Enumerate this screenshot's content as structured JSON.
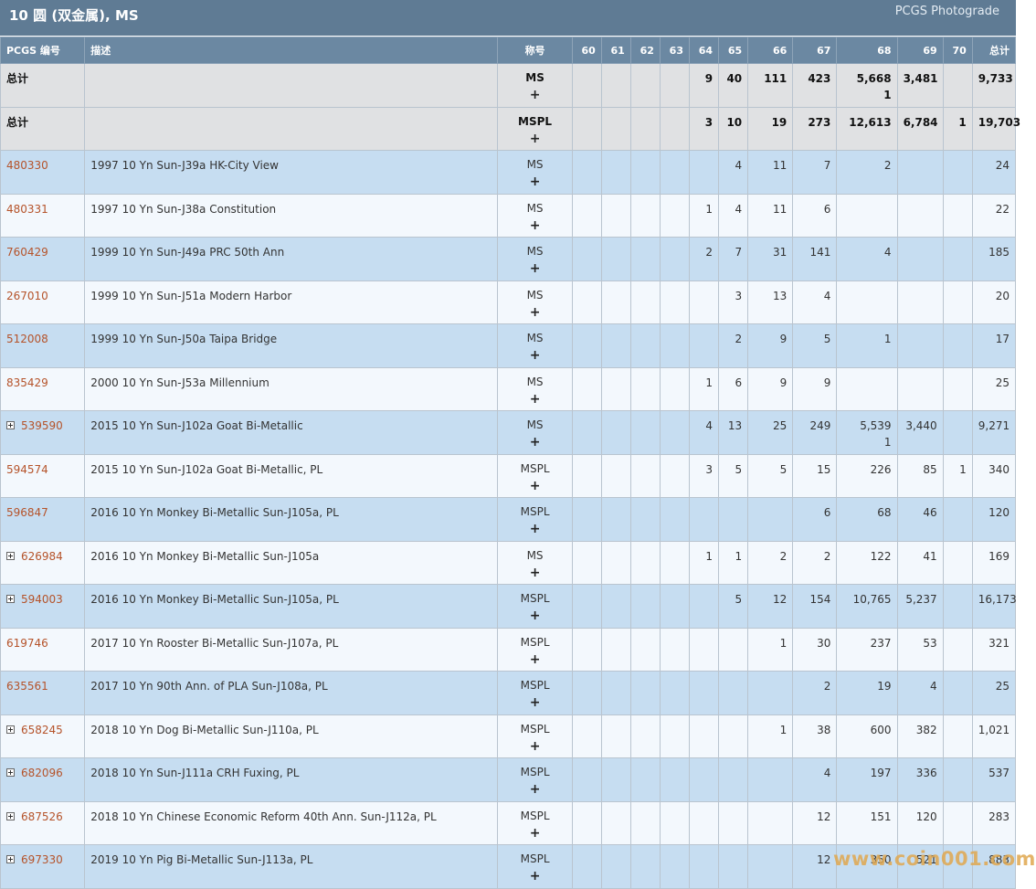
{
  "header": {
    "title": "10 圆 (双金属), MS",
    "brand": "PCGS Photograde"
  },
  "columns": {
    "code": "PCGS 编号",
    "desc": "描述",
    "designation": "称号",
    "grades": [
      "60",
      "61",
      "62",
      "63",
      "64",
      "65",
      "66",
      "67",
      "68",
      "69",
      "70"
    ],
    "total": "总计"
  },
  "totals": [
    {
      "label": "总计",
      "designation": "MS",
      "plus": "+",
      "counts": [
        "",
        "",
        "",
        "",
        "9",
        "40",
        "111",
        "423",
        "5,668",
        "3,481",
        ""
      ],
      "sub68": "1",
      "total": "9,733"
    },
    {
      "label": "总计",
      "designation": "MSPL",
      "plus": "+",
      "counts": [
        "",
        "",
        "",
        "",
        "3",
        "10",
        "19",
        "273",
        "12,613",
        "6,784",
        "1"
      ],
      "total": "19,703"
    }
  ],
  "rows": [
    {
      "code": "480330",
      "desc": "1997 10 Yn Sun-J39a HK-City View",
      "designation": "MS",
      "plus": "+",
      "expandable": false,
      "counts": [
        "",
        "",
        "",
        "",
        "",
        "4",
        "11",
        "7",
        "2",
        "",
        ""
      ],
      "total": "24"
    },
    {
      "code": "480331",
      "desc": "1997 10 Yn Sun-J38a Constitution",
      "designation": "MS",
      "plus": "+",
      "expandable": false,
      "counts": [
        "",
        "",
        "",
        "",
        "1",
        "4",
        "11",
        "6",
        "",
        "",
        ""
      ],
      "total": "22"
    },
    {
      "code": "760429",
      "desc": "1999 10 Yn Sun-J49a PRC 50th Ann",
      "designation": "MS",
      "plus": "+",
      "expandable": false,
      "counts": [
        "",
        "",
        "",
        "",
        "2",
        "7",
        "31",
        "141",
        "4",
        "",
        ""
      ],
      "total": "185"
    },
    {
      "code": "267010",
      "desc": "1999 10 Yn Sun-J51a Modern Harbor",
      "designation": "MS",
      "plus": "+",
      "expandable": false,
      "counts": [
        "",
        "",
        "",
        "",
        "",
        "3",
        "13",
        "4",
        "",
        "",
        ""
      ],
      "total": "20"
    },
    {
      "code": "512008",
      "desc": "1999 10 Yn Sun-J50a Taipa Bridge",
      "designation": "MS",
      "plus": "+",
      "expandable": false,
      "counts": [
        "",
        "",
        "",
        "",
        "",
        "2",
        "9",
        "5",
        "1",
        "",
        ""
      ],
      "total": "17"
    },
    {
      "code": "835429",
      "desc": "2000 10 Yn Sun-J53a Millennium",
      "designation": "MS",
      "plus": "+",
      "expandable": false,
      "counts": [
        "",
        "",
        "",
        "",
        "1",
        "6",
        "9",
        "9",
        "",
        "",
        ""
      ],
      "total": "25"
    },
    {
      "code": "539590",
      "desc": "2015 10 Yn Sun-J102a Goat Bi-Metallic",
      "designation": "MS",
      "plus": "+",
      "expandable": true,
      "counts": [
        "",
        "",
        "",
        "",
        "4",
        "13",
        "25",
        "249",
        "5,539",
        "3,440",
        ""
      ],
      "sub68": "1",
      "total": "9,271"
    },
    {
      "code": "594574",
      "desc": "2015 10 Yn Sun-J102a Goat Bi-Metallic, PL",
      "designation": "MSPL",
      "plus": "+",
      "expandable": false,
      "counts": [
        "",
        "",
        "",
        "",
        "3",
        "5",
        "5",
        "15",
        "226",
        "85",
        "1"
      ],
      "total": "340"
    },
    {
      "code": "596847",
      "desc": "2016 10 Yn Monkey Bi-Metallic Sun-J105a, PL",
      "designation": "MSPL",
      "plus": "+",
      "expandable": false,
      "counts": [
        "",
        "",
        "",
        "",
        "",
        "",
        "",
        "6",
        "68",
        "46",
        ""
      ],
      "total": "120"
    },
    {
      "code": "626984",
      "desc": "2016 10 Yn Monkey Bi-Metallic Sun-J105a",
      "designation": "MS",
      "plus": "+",
      "expandable": true,
      "counts": [
        "",
        "",
        "",
        "",
        "1",
        "1",
        "2",
        "2",
        "122",
        "41",
        ""
      ],
      "total": "169"
    },
    {
      "code": "594003",
      "desc": "2016 10 Yn Monkey Bi-Metallic Sun-J105a, PL",
      "designation": "MSPL",
      "plus": "+",
      "expandable": true,
      "counts": [
        "",
        "",
        "",
        "",
        "",
        "5",
        "12",
        "154",
        "10,765",
        "5,237",
        ""
      ],
      "total": "16,173"
    },
    {
      "code": "619746",
      "desc": "2017 10 Yn Rooster Bi-Metallic Sun-J107a, PL",
      "designation": "MSPL",
      "plus": "+",
      "expandable": false,
      "counts": [
        "",
        "",
        "",
        "",
        "",
        "",
        "1",
        "30",
        "237",
        "53",
        ""
      ],
      "total": "321"
    },
    {
      "code": "635561",
      "desc": "2017 10 Yn 90th Ann. of PLA Sun-J108a, PL",
      "designation": "MSPL",
      "plus": "+",
      "expandable": false,
      "counts": [
        "",
        "",
        "",
        "",
        "",
        "",
        "",
        "2",
        "19",
        "4",
        ""
      ],
      "total": "25"
    },
    {
      "code": "658245",
      "desc": "2018 10 Yn Dog Bi-Metallic Sun-J110a, PL",
      "designation": "MSPL",
      "plus": "+",
      "expandable": true,
      "counts": [
        "",
        "",
        "",
        "",
        "",
        "",
        "1",
        "38",
        "600",
        "382",
        ""
      ],
      "total": "1,021"
    },
    {
      "code": "682096",
      "desc": "2018 10 Yn Sun-J111a CRH Fuxing, PL",
      "designation": "MSPL",
      "plus": "+",
      "expandable": true,
      "counts": [
        "",
        "",
        "",
        "",
        "",
        "",
        "",
        "4",
        "197",
        "336",
        ""
      ],
      "total": "537"
    },
    {
      "code": "687526",
      "desc": "2018 10 Yn Chinese Economic Reform 40th Ann. Sun-J112a, PL",
      "designation": "MSPL",
      "plus": "+",
      "expandable": true,
      "counts": [
        "",
        "",
        "",
        "",
        "",
        "",
        "",
        "12",
        "151",
        "120",
        ""
      ],
      "total": "283"
    },
    {
      "code": "697330",
      "desc": "2019 10 Yn Pig Bi-Metallic Sun-J113a, PL",
      "designation": "MSPL",
      "plus": "+",
      "expandable": true,
      "counts": [
        "",
        "",
        "",
        "",
        "",
        "",
        "",
        "12",
        "350",
        "521",
        ""
      ],
      "total": "883"
    }
  ],
  "watermark": "www.coin001.com"
}
